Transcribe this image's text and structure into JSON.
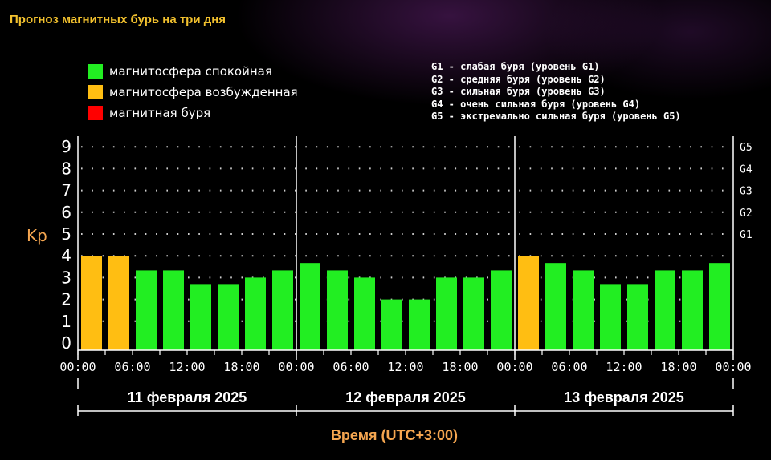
{
  "title": "Прогноз магнитных бурь на три дня",
  "legend": [
    {
      "label": "магнитосфера спокойная",
      "color": "#22ee22"
    },
    {
      "label": "магнитосфера возбужденная",
      "color": "#ffbe12"
    },
    {
      "label": "магнитная буря",
      "color": "#ff0000"
    }
  ],
  "g_legend": [
    "G1 - слабая буря (уровень G1)",
    "G2 - средняя буря (уровень G2)",
    "G3 - сильная буря (уровень G3)",
    "G4 - очень сильная буря (уровень G4)",
    "G5 - экстремально сильная буря (уровень G5)"
  ],
  "chart_data": {
    "type": "bar",
    "ylabel": "Kp",
    "xlabel": "Время (UTC+3:00)",
    "ylim": [
      0,
      9
    ],
    "yticks": [
      "0",
      "1",
      "2",
      "3",
      "4",
      "5",
      "6",
      "7",
      "8",
      "9"
    ],
    "right_ticks": [
      {
        "label": "G1",
        "kp": 5
      },
      {
        "label": "G2",
        "kp": 6
      },
      {
        "label": "G3",
        "kp": 7
      },
      {
        "label": "G4",
        "kp": 8
      },
      {
        "label": "G5",
        "kp": 9
      }
    ],
    "xtick_labels": [
      "00:00",
      "06:00",
      "12:00",
      "18:00",
      "00:00",
      "06:00",
      "12:00",
      "18:00",
      "00:00",
      "06:00",
      "12:00",
      "18:00",
      "00:00"
    ],
    "days": [
      "11 февраля 2025",
      "12 февраля 2025",
      "13 февраля 2025"
    ],
    "values": [
      4,
      4,
      3.33,
      3.33,
      2.67,
      2.67,
      3,
      3.33,
      3.67,
      3.33,
      3,
      2,
      2,
      3,
      3,
      3.33,
      4,
      3.67,
      3.33,
      2.67,
      2.67,
      3.33,
      3.33,
      3.67
    ],
    "levels": [
      "excited",
      "excited",
      "quiet",
      "quiet",
      "quiet",
      "quiet",
      "quiet",
      "quiet",
      "quiet",
      "quiet",
      "quiet",
      "quiet",
      "quiet",
      "quiet",
      "quiet",
      "quiet",
      "excited",
      "quiet",
      "quiet",
      "quiet",
      "quiet",
      "quiet",
      "quiet",
      "quiet"
    ],
    "colors": {
      "quiet": "#22ee22",
      "excited": "#ffbe12",
      "storm": "#ff0000"
    },
    "grid": true
  }
}
